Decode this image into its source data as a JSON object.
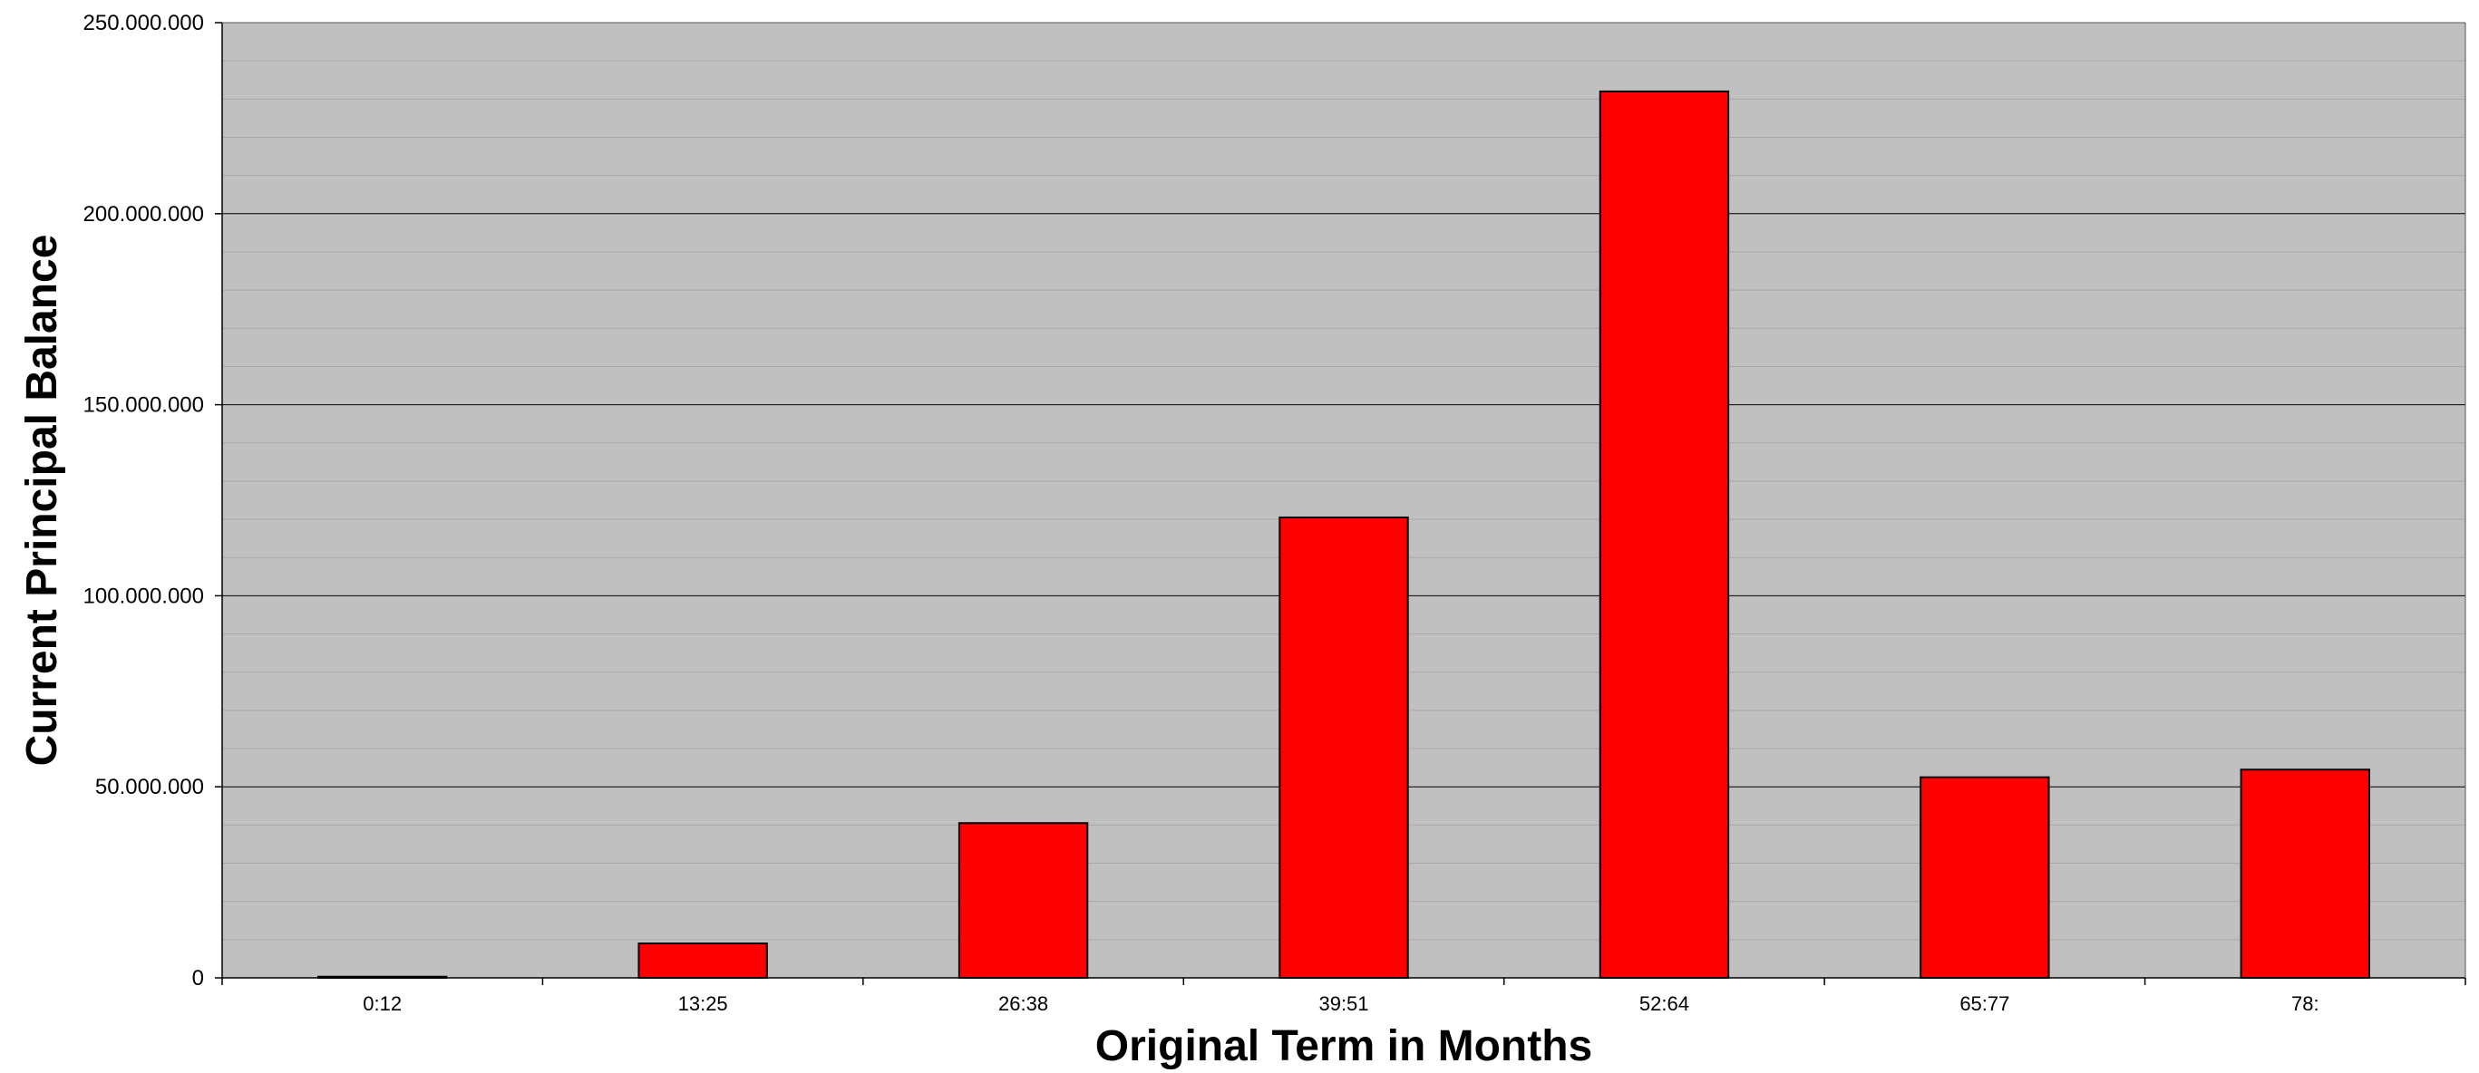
{
  "chart_data": {
    "type": "bar",
    "title": "",
    "xlabel": "Original Term in Months",
    "ylabel": "Current Principal Balance",
    "categories": [
      "0:12",
      "13:25",
      "26:38",
      "39:51",
      "52:64",
      "65:77",
      "78:"
    ],
    "values": [
      300000,
      9000000,
      40500000,
      120500000,
      232000000,
      52500000,
      54500000
    ],
    "ylim": [
      0,
      250000000
    ],
    "yticks": [
      0,
      50000000,
      100000000,
      150000000,
      200000000,
      250000000
    ],
    "ytick_labels": [
      "0",
      "50.000.000",
      "100.000.000",
      "150.000.000",
      "200.000.000",
      "250.000.000"
    ],
    "grid": true,
    "legend": "none",
    "colors": {
      "bar_fill": "#ff0000",
      "bar_stroke": "#000000",
      "plot_background": "#c0c0c0",
      "major_grid": "#000000",
      "minor_grid": "#a8a8a8"
    }
  }
}
